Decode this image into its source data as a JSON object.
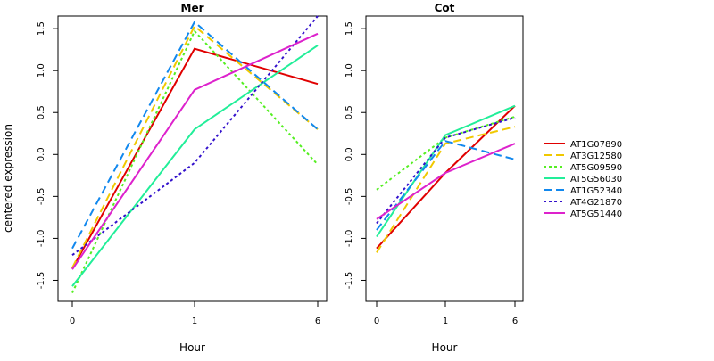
{
  "chart_data": {
    "type": "line",
    "ylabel": "centered expression",
    "xlabel": "Hour",
    "x_categories": [
      "0",
      "1",
      "6"
    ],
    "legend_position": "right",
    "grid": false,
    "series_styles": [
      {
        "name": "AT1G07890",
        "color": "#e00000",
        "dash": "solid"
      },
      {
        "name": "AT3G12580",
        "color": "#f0c800",
        "dash": "dashed"
      },
      {
        "name": "AT5G09590",
        "color": "#55ee22",
        "dash": "dotted"
      },
      {
        "name": "AT5G56030",
        "color": "#22ee99",
        "dash": "solid"
      },
      {
        "name": "AT1G52340",
        "color": "#1188ee",
        "dash": "dashed"
      },
      {
        "name": "AT4G21870",
        "color": "#3311cc",
        "dash": "dotted"
      },
      {
        "name": "AT5G51440",
        "color": "#dd22cc",
        "dash": "solid"
      }
    ],
    "panels": [
      {
        "title": "Mer",
        "ylim": [
          -1.75,
          1.65
        ],
        "yticks": [
          "-1.5",
          "-1.0",
          "-0.5",
          "0.0",
          "0.5",
          "1.0",
          "1.5"
        ],
        "series": [
          {
            "name": "AT1G07890",
            "values": [
              -1.36,
              1.26,
              0.84
            ]
          },
          {
            "name": "AT3G12580",
            "values": [
              -1.35,
              1.53,
              0.3
            ]
          },
          {
            "name": "AT5G09590",
            "values": [
              -1.65,
              1.47,
              -0.12
            ]
          },
          {
            "name": "AT5G56030",
            "values": [
              -1.57,
              0.3,
              1.3
            ]
          },
          {
            "name": "AT1G52340",
            "values": [
              -1.12,
              1.58,
              0.3
            ]
          },
          {
            "name": "AT4G21870",
            "values": [
              -1.2,
              -0.1,
              1.65
            ]
          },
          {
            "name": "AT5G51440",
            "values": [
              -1.37,
              0.77,
              1.44
            ]
          }
        ]
      },
      {
        "title": "Cot",
        "ylim": [
          -1.75,
          1.65
        ],
        "yticks": [
          "-1.5",
          "-1.0",
          "-0.5",
          "0.0",
          "0.5",
          "1.0",
          "1.5"
        ],
        "series": [
          {
            "name": "AT1G07890",
            "values": [
              -1.12,
              -0.22,
              0.58
            ]
          },
          {
            "name": "AT3G12580",
            "values": [
              -1.17,
              0.13,
              0.33
            ]
          },
          {
            "name": "AT5G09590",
            "values": [
              -0.42,
              0.2,
              0.45
            ]
          },
          {
            "name": "AT5G56030",
            "values": [
              -0.98,
              0.23,
              0.58
            ]
          },
          {
            "name": "AT1G52340",
            "values": [
              -0.9,
              0.16,
              -0.06
            ]
          },
          {
            "name": "AT4G21870",
            "values": [
              -0.82,
              0.2,
              0.44
            ]
          },
          {
            "name": "AT5G51440",
            "values": [
              -0.77,
              -0.22,
              0.13
            ]
          }
        ]
      }
    ]
  }
}
